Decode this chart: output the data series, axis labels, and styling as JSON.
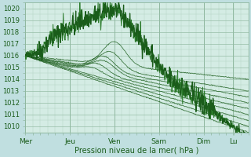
{
  "xlabel": "Pression niveau de la mer( hPa )",
  "bg_color": "#c0dfe0",
  "plot_bg_color": "#d4ece4",
  "grid_minor_color": "#a8cbb8",
  "grid_major_color": "#90b8a0",
  "dark_green": "#1a5c1a",
  "mid_green": "#2a7a2a",
  "yticks": [
    1010,
    1011,
    1012,
    1013,
    1014,
    1015,
    1016,
    1017,
    1018,
    1019,
    1020
  ],
  "xtick_labels": [
    "Mer",
    "Jeu",
    "Ven",
    "Sam",
    "Dim",
    "Lu"
  ],
  "xtick_positions": [
    0,
    0.2,
    0.4,
    0.6,
    0.8,
    0.933
  ],
  "ylim": [
    1009.5,
    1020.5
  ],
  "xlim": [
    0,
    1.0
  ]
}
